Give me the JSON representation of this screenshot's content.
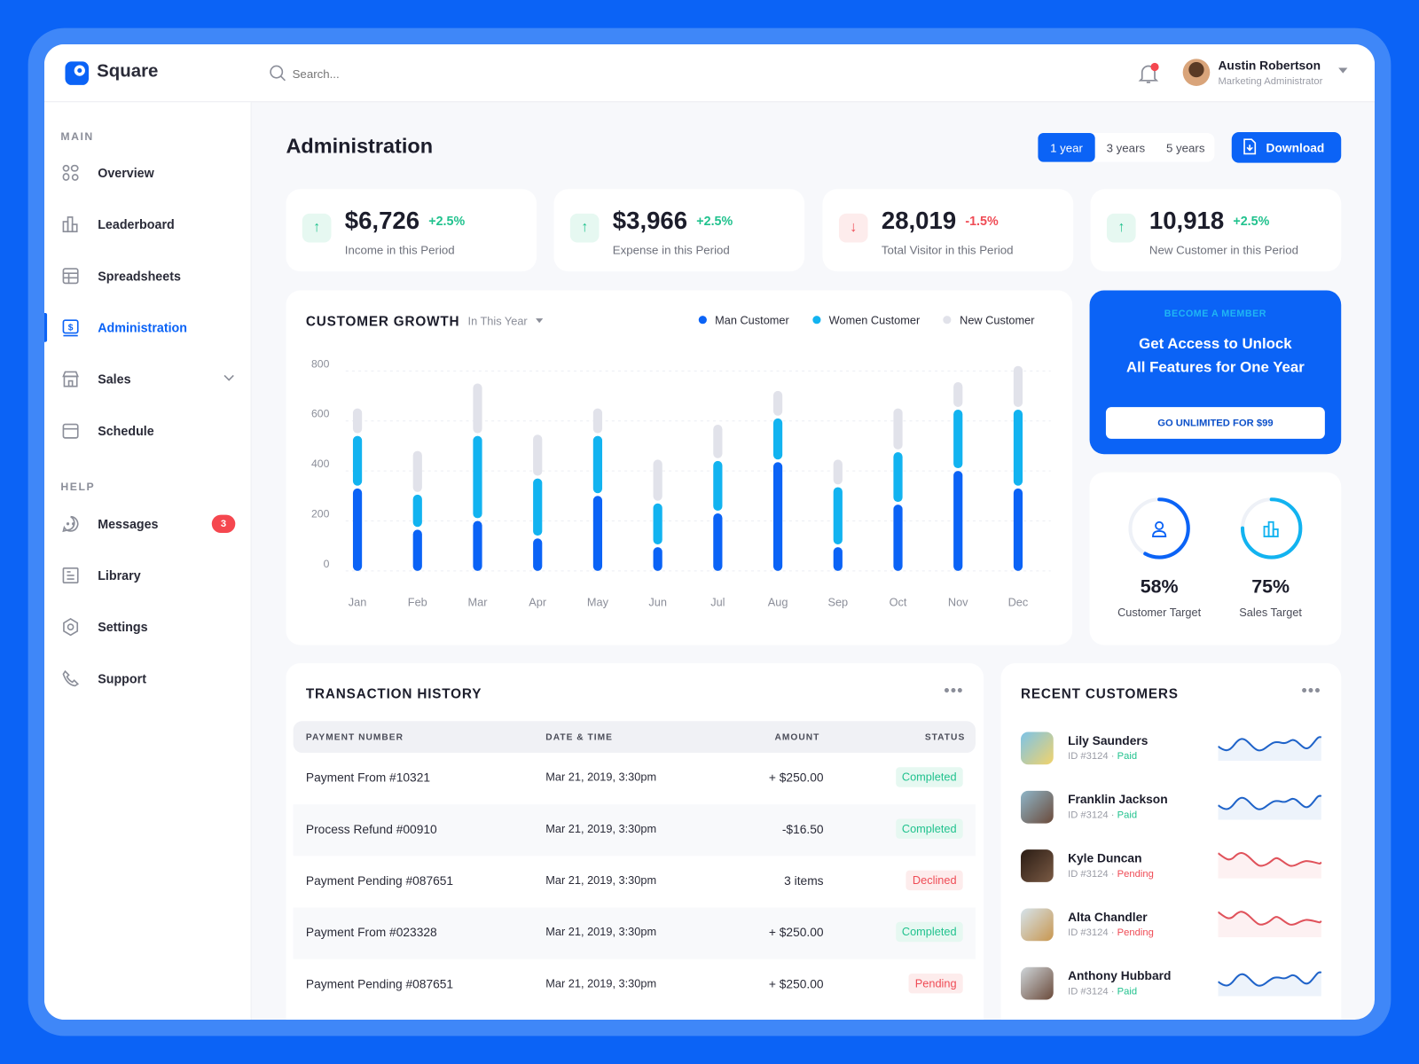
{
  "app": {
    "name": "Square",
    "search_placeholder": "Search...",
    "accent": "#0b63f6"
  },
  "user": {
    "name": "Austin Robertson",
    "role": "Marketing Administrator",
    "has_notification": true
  },
  "sidebar": {
    "sections": [
      {
        "label": "MAIN"
      },
      {
        "label": "HELP"
      }
    ],
    "items": [
      {
        "label": "Overview",
        "icon": "overview-icon"
      },
      {
        "label": "Leaderboard",
        "icon": "bar-chart-icon"
      },
      {
        "label": "Spreadsheets",
        "icon": "table-icon"
      },
      {
        "label": "Administration",
        "icon": "dollar-icon",
        "active": true
      },
      {
        "label": "Sales",
        "icon": "store-icon"
      },
      {
        "label": "Schedule",
        "icon": "calendar-icon"
      },
      {
        "label": "Messages",
        "icon": "chat-icon",
        "badge": "3"
      },
      {
        "label": "Library",
        "icon": "library-icon"
      },
      {
        "label": "Settings",
        "icon": "gear-icon"
      },
      {
        "label": "Support",
        "icon": "phone-icon"
      }
    ]
  },
  "page": {
    "title": "Administration",
    "ranges": [
      "1 year",
      "3 years",
      "5 years"
    ],
    "active_range": "1 year",
    "download_label": "Download"
  },
  "stats": [
    {
      "value": "$6,726",
      "change": "+2.5%",
      "trend": "up",
      "label": "Income in this Period"
    },
    {
      "value": "$3,966",
      "change": "+2.5%",
      "trend": "up",
      "label": "Expense in this Period"
    },
    {
      "value": "28,019",
      "change": "-1.5%",
      "trend": "down",
      "label": "Total Visitor in this Period"
    },
    {
      "value": "10,918",
      "change": "+2.5%",
      "trend": "up",
      "label": "New Customer in this Period"
    }
  ],
  "growth": {
    "title": "CUSTOMER GROWTH",
    "filter": "In This Year"
  },
  "chart_data": {
    "type": "bar",
    "stacked": true,
    "categories": [
      "Jan",
      "Feb",
      "Mar",
      "Apr",
      "May",
      "Jun",
      "Jul",
      "Aug",
      "Sep",
      "Oct",
      "Nov",
      "Dec"
    ],
    "series": [
      {
        "name": "Man Customer",
        "color": "#0b63f6",
        "values": [
          330,
          165,
          200,
          130,
          300,
          95,
          230,
          435,
          95,
          265,
          400,
          330
        ]
      },
      {
        "name": "Women Customer",
        "color": "#12b3f0",
        "values": [
          210,
          140,
          340,
          240,
          240,
          175,
          210,
          175,
          240,
          210,
          245,
          315
        ]
      },
      {
        "name": "New Customer",
        "color": "#e1e2ea",
        "values": [
          110,
          175,
          210,
          175,
          110,
          175,
          145,
          110,
          110,
          175,
          110,
          175
        ]
      }
    ],
    "yticks": [
      "0",
      "200",
      "400",
      "600",
      "800"
    ],
    "ylim": [
      0,
      800
    ],
    "grid": true,
    "legend": "top-right"
  },
  "promo": {
    "eyebrow": "BECOME A MEMBER",
    "headline1": "Get Access to Unlock",
    "headline2": "All Features for One Year",
    "cta": "GO UNLIMITED FOR $99"
  },
  "targets": [
    {
      "value": "58%",
      "fraction": 0.58,
      "label": "Customer Target",
      "color": "#0b63f6",
      "icon": "user-icon"
    },
    {
      "value": "75%",
      "fraction": 0.75,
      "label": "Sales Target",
      "color": "#12b3f0",
      "icon": "bar-chart-icon"
    }
  ],
  "transactions": {
    "title": "TRANSACTION HISTORY",
    "columns": [
      "PAYMENT NUMBER",
      "DATE & TIME",
      "AMOUNT",
      "STATUS"
    ],
    "rows": [
      {
        "name": "Payment From #10321",
        "date": "Mar 21, 2019, 3:30pm",
        "amount": "+ $250.00",
        "status": "Completed"
      },
      {
        "name": "Process Refund #00910",
        "date": "Mar 21, 2019, 3:30pm",
        "amount": "-$16.50",
        "status": "Completed"
      },
      {
        "name": "Payment Pending #087651",
        "date": "Mar 21, 2019, 3:30pm",
        "amount": "3 items",
        "status": "Declined"
      },
      {
        "name": "Payment From #023328",
        "date": "Mar 21, 2019, 3:30pm",
        "amount": "+ $250.00",
        "status": "Completed"
      },
      {
        "name": "Payment Pending #087651",
        "date": "Mar 21, 2019, 3:30pm",
        "amount": "+ $250.00",
        "status": "Pending"
      }
    ]
  },
  "customers": {
    "title": "RECENT CUSTOMERS",
    "items": [
      {
        "name": "Lily Saunders",
        "id": "ID #3124",
        "status": "Paid"
      },
      {
        "name": "Franklin Jackson",
        "id": "ID #3124",
        "status": "Paid"
      },
      {
        "name": "Kyle Duncan",
        "id": "ID #3124",
        "status": "Pending"
      },
      {
        "name": "Alta Chandler",
        "id": "ID #3124",
        "status": "Pending"
      },
      {
        "name": "Anthony Hubbard",
        "id": "ID #3124",
        "status": "Paid"
      }
    ]
  }
}
